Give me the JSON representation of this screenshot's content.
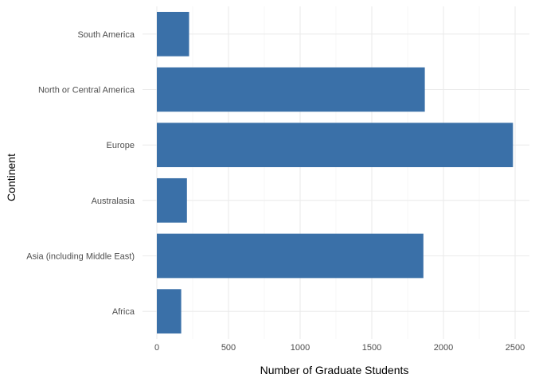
{
  "chart_data": {
    "type": "bar",
    "orientation": "horizontal",
    "categories": [
      "Africa",
      "Asia (including Middle East)",
      "Australasia",
      "Europe",
      "North or Central America",
      "South America"
    ],
    "values": [
      170,
      1860,
      210,
      2485,
      1870,
      225
    ],
    "xlabel": "Number of Graduate Students",
    "ylabel": "Continent",
    "x_ticks": [
      0,
      500,
      1000,
      1500,
      2000,
      2500
    ],
    "xlim": [
      -100,
      2600
    ],
    "grid": true,
    "legend": "none",
    "bar_color": "#3A70A8"
  }
}
